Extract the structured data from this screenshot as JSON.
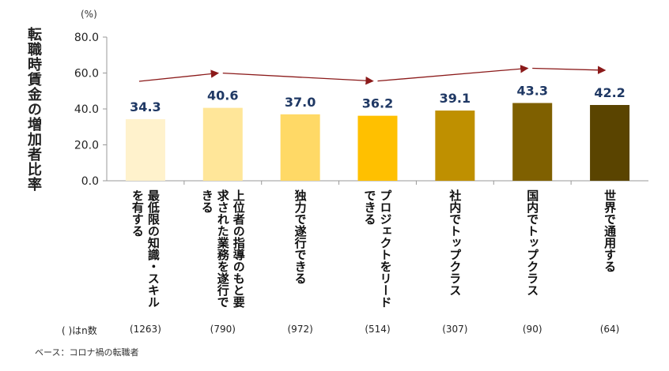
{
  "chart_data": {
    "type": "bar",
    "ylabel": "転職時賃金の増加者比率",
    "unit": "(%)",
    "ylim": [
      0,
      80
    ],
    "yticks": [
      "0.0",
      "20.0",
      "40.0",
      "60.0",
      "80.0"
    ],
    "categories": [
      "最低限の知識・スキル\nを有する",
      "上位者の指導のもと要\n求された業務を遂行で\nきる",
      "独力で遂行できる",
      "プロジェクトをリード\nできる",
      "社内でトップクラス",
      "国内でトップクラス",
      "世界で通用する"
    ],
    "values": [
      34.3,
      40.6,
      37.0,
      36.2,
      39.1,
      43.3,
      42.2
    ],
    "value_labels": [
      "34.3",
      "40.6",
      "37.0",
      "36.2",
      "39.1",
      "43.3",
      "42.2"
    ],
    "bar_colors": [
      "#fff2cc",
      "#ffe699",
      "#ffd966",
      "#ffc000",
      "#bf9000",
      "#7f6000",
      "#5a4400"
    ],
    "n_header": "( )はn数",
    "n_values": [
      "(1263)",
      "(790)",
      "(972)",
      "(514)",
      "(307)",
      "(90)",
      "(64)"
    ],
    "base_note": "ベース：コロナ禍の転職者",
    "grid": false
  }
}
